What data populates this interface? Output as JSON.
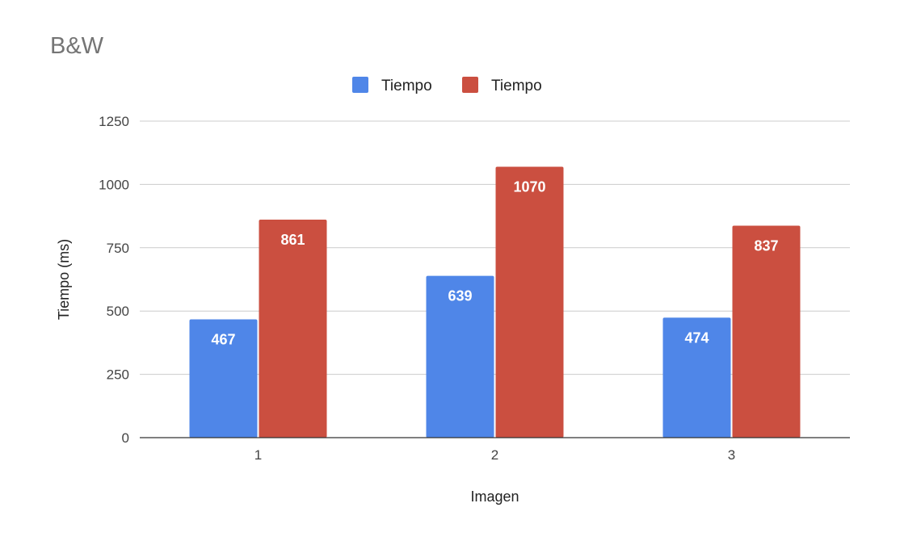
{
  "chart_data": {
    "type": "bar",
    "title": "B&W",
    "xlabel": "Imagen",
    "ylabel": "Tiempo (ms)",
    "categories": [
      "1",
      "2",
      "3"
    ],
    "series": [
      {
        "name": "Tiempo",
        "values": [
          467,
          639,
          474
        ],
        "color": "#4f86e8"
      },
      {
        "name": "Tiempo",
        "values": [
          861,
          1070,
          837
        ],
        "color": "#cb4f40"
      }
    ],
    "ylim": [
      0,
      1250
    ],
    "yticks": [
      0,
      250,
      500,
      750,
      1000,
      1250
    ],
    "grid": true,
    "legend_position": "top"
  }
}
